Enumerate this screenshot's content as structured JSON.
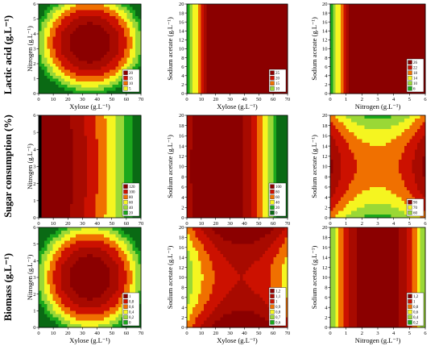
{
  "colors": {
    "dark_red": "#8b0000",
    "red": "#cc1100",
    "orange": "#f07000",
    "yellow": "#f5f520",
    "light_green": "#9ad836",
    "green": "#1ca81c",
    "dark_green": "#0a6a14"
  },
  "row_labels": [
    "Lactic acid (g.L⁻¹)",
    "Sugar consumption (%)",
    "Biomass (g.L⁻¹)"
  ],
  "chart_data": [
    {
      "type": "heatmap",
      "row": 0,
      "col": 0,
      "xlabel": "Xylose (g.L⁻¹)",
      "ylabel": "Nitrogen (g.L⁻¹)",
      "x_ticks": [
        "0",
        "10",
        "20",
        "30",
        "40",
        "50",
        "60",
        "70"
      ],
      "y_ticks": [
        "0",
        "1",
        "2",
        "3",
        "4",
        "5",
        "6"
      ],
      "xlim": [
        0,
        70
      ],
      "ylim": [
        0,
        6
      ],
      "legend": [
        "20",
        "15",
        "10",
        "5"
      ],
      "legend_colors": [
        "#8b0000",
        "#cc1100",
        "#f07000",
        "#f5f520"
      ],
      "pattern": "peak-center",
      "center": [
        35,
        3.4
      ]
    },
    {
      "type": "heatmap",
      "row": 0,
      "col": 1,
      "xlabel": "Xylose (g.L⁻¹)",
      "ylabel": "Sodium acetate (g.L⁻¹)",
      "x_ticks": [
        "0",
        "10",
        "20",
        "30",
        "40",
        "50",
        "60",
        "70"
      ],
      "y_ticks": [
        "0",
        "2",
        "4",
        "6",
        "8",
        "10",
        "12",
        "14",
        "16",
        "18",
        "20"
      ],
      "xlim": [
        0,
        70
      ],
      "ylim": [
        0,
        20
      ],
      "legend": [
        "25",
        "20",
        "15",
        "10"
      ],
      "legend_colors": [
        "#8b0000",
        "#cc1100",
        "#f07000",
        "#9ad836"
      ],
      "pattern": "low-left"
    },
    {
      "type": "heatmap",
      "row": 0,
      "col": 2,
      "xlabel": "Nitrogen (g.L⁻¹)",
      "ylabel": "Sodium acetate (g.L⁻¹)",
      "x_ticks": [
        "0",
        "1",
        "2",
        "3",
        "4",
        "5",
        "6"
      ],
      "y_ticks": [
        "0",
        "2",
        "4",
        "6",
        "8",
        "10",
        "12",
        "14",
        "16",
        "18",
        "20"
      ],
      "xlim": [
        0,
        6
      ],
      "ylim": [
        0,
        20
      ],
      "legend": [
        "26",
        "22",
        "18",
        "14",
        "10",
        "6"
      ],
      "legend_colors": [
        "#8b0000",
        "#cc1100",
        "#f07000",
        "#f5f520",
        "#9ad836",
        "#1ca81c"
      ],
      "pattern": "low-left"
    },
    {
      "type": "heatmap",
      "row": 1,
      "col": 0,
      "xlabel": "Xylose (g.L⁻¹)",
      "ylabel": "Nitrogen (g.L⁻¹)",
      "x_ticks": [
        "0",
        "10",
        "20",
        "30",
        "40",
        "50",
        "60",
        "70"
      ],
      "y_ticks": [
        "0",
        "1",
        "2",
        "3",
        "4",
        "5",
        "6"
      ],
      "xlim": [
        0,
        70
      ],
      "ylim": [
        0,
        6
      ],
      "legend": [
        "120",
        "100",
        "80",
        "60",
        "40",
        "20"
      ],
      "legend_colors": [
        "#8b0000",
        "#cc1100",
        "#f07000",
        "#f5f520",
        "#9ad836",
        "#1ca81c"
      ],
      "pattern": "decreasing-x"
    },
    {
      "type": "heatmap",
      "row": 1,
      "col": 1,
      "xlabel": "Xylose (g.L⁻¹)",
      "ylabel": "Sodium acetate (g.L⁻¹)",
      "x_ticks": [
        "0",
        "10",
        "20",
        "30",
        "40",
        "50",
        "60",
        "70"
      ],
      "y_ticks": [
        "0",
        "2",
        "4",
        "6",
        "8",
        "10",
        "12",
        "14",
        "16",
        "18",
        "20"
      ],
      "xlim": [
        0,
        70
      ],
      "ylim": [
        0,
        20
      ],
      "legend": [
        "100",
        "80",
        "60",
        "40",
        "20",
        "0"
      ],
      "legend_colors": [
        "#8b0000",
        "#cc1100",
        "#f07000",
        "#f5f520",
        "#1ca81c",
        "#0a6a14"
      ],
      "pattern": "peak-x-left"
    },
    {
      "type": "heatmap",
      "row": 1,
      "col": 2,
      "xlabel": "Nitrogen (g.L⁻¹)",
      "ylabel": "Sodium acetate (g.L⁻¹)",
      "x_ticks": [
        "0",
        "1",
        "2",
        "3",
        "4",
        "5",
        "6"
      ],
      "y_ticks": [
        "0",
        "2",
        "4",
        "6",
        "8",
        "10",
        "12",
        "14",
        "16",
        "18",
        "20"
      ],
      "xlim": [
        0,
        6
      ],
      "ylim": [
        0,
        20
      ],
      "legend": [
        "90",
        "70",
        "60"
      ],
      "legend_colors": [
        "#8b0000",
        "#f5f520",
        "#9ad836"
      ],
      "pattern": "saddle"
    },
    {
      "type": "heatmap",
      "row": 2,
      "col": 0,
      "xlabel": "Xylose (g.L⁻¹)",
      "ylabel": "Nitrogen (g.L⁻¹)",
      "x_ticks": [
        "0",
        "10",
        "20",
        "30",
        "40",
        "50",
        "60",
        "70"
      ],
      "y_ticks": [
        "0",
        "1",
        "2",
        "3",
        "4",
        "5",
        "6"
      ],
      "xlim": [
        0,
        70
      ],
      "ylim": [
        0,
        6
      ],
      "legend": [
        "1",
        "0,8",
        "0,6",
        "0,4",
        "0,2",
        "0"
      ],
      "legend_colors": [
        "#8b0000",
        "#cc1100",
        "#f07000",
        "#f5f520",
        "#9ad836",
        "#1ca81c"
      ],
      "pattern": "peak-center",
      "center": [
        35,
        3.0
      ]
    },
    {
      "type": "heatmap",
      "row": 2,
      "col": 1,
      "xlabel": "Xylose (g.L⁻¹)",
      "ylabel": "Sodium acetate (g.L⁻¹)",
      "x_ticks": [
        "0",
        "10",
        "20",
        "30",
        "40",
        "50",
        "60",
        "70"
      ],
      "y_ticks": [
        "0",
        "2",
        "4",
        "6",
        "8",
        "10",
        "12",
        "14",
        "16",
        "18",
        "20"
      ],
      "xlim": [
        0,
        70
      ],
      "ylim": [
        0,
        20
      ],
      "legend": [
        "1,2",
        "1,1",
        "1",
        "0,9",
        "0,8",
        "0,7",
        "0,6"
      ],
      "legend_colors": [
        "#8b0000",
        "#a80a00",
        "#cc1100",
        "#f07000",
        "#f5f520",
        "#9ad836",
        "#1ca81c"
      ],
      "pattern": "hourglass"
    },
    {
      "type": "heatmap",
      "row": 2,
      "col": 2,
      "xlabel": "Nitrogen (g.L⁻¹)",
      "ylabel": "Sodium acetate (g.L⁻¹)",
      "x_ticks": [
        "0",
        "1",
        "2",
        "3",
        "4",
        "5",
        "6"
      ],
      "y_ticks": [
        "0",
        "2",
        "4",
        "6",
        "8",
        "10",
        "12",
        "14",
        "16",
        "18",
        "20"
      ],
      "xlim": [
        0,
        6
      ],
      "ylim": [
        0,
        20
      ],
      "legend": [
        "1,2",
        "1",
        "0,8",
        "0,6",
        "0,4",
        "0,2"
      ],
      "legend_colors": [
        "#8b0000",
        "#cc1100",
        "#f07000",
        "#f5f520",
        "#9ad836",
        "#1ca81c"
      ],
      "pattern": "peak-x-center"
    }
  ]
}
